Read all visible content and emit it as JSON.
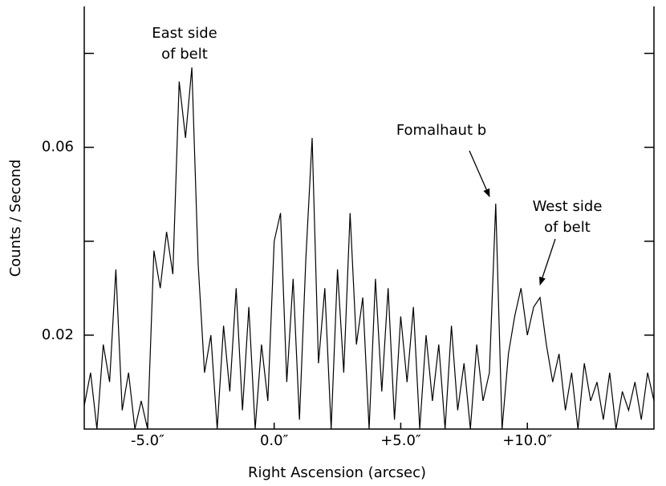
{
  "chart_data": {
    "type": "line",
    "xlabel": "Right Ascension (arcsec)",
    "ylabel": "Counts / Second",
    "x": [
      -7.5,
      -7.25,
      -7.0,
      -6.75,
      -6.5,
      -6.25,
      -6.0,
      -5.75,
      -5.5,
      -5.25,
      -5.0,
      -4.75,
      -4.5,
      -4.25,
      -4.0,
      -3.75,
      -3.5,
      -3.25,
      -3.0,
      -2.75,
      -2.5,
      -2.25,
      -2.0,
      -1.75,
      -1.5,
      -1.25,
      -1.0,
      -0.75,
      -0.5,
      -0.25,
      0.0,
      0.25,
      0.5,
      0.75,
      1.0,
      1.25,
      1.5,
      1.75,
      2.0,
      2.25,
      2.5,
      2.75,
      3.0,
      3.25,
      3.5,
      3.75,
      4.0,
      4.25,
      4.5,
      4.75,
      5.0,
      5.25,
      5.5,
      5.75,
      6.0,
      6.25,
      6.5,
      6.75,
      7.0,
      7.25,
      7.5,
      7.75,
      8.0,
      8.25,
      8.5,
      8.75,
      9.0,
      9.25,
      9.5,
      9.75,
      10.0,
      10.25,
      10.5,
      10.75,
      11.0,
      11.25,
      11.5,
      11.75,
      12.0,
      12.25,
      12.5,
      12.75,
      13.0,
      13.25,
      13.5,
      13.75,
      14.0,
      14.25,
      14.5,
      14.75,
      15.0
    ],
    "values": [
      0.005,
      0.012,
      0.0,
      0.018,
      0.01,
      0.034,
      0.004,
      0.012,
      0.0,
      0.006,
      0.0,
      0.038,
      0.03,
      0.042,
      0.033,
      0.074,
      0.062,
      0.077,
      0.035,
      0.012,
      0.02,
      0.0,
      0.022,
      0.008,
      0.03,
      0.004,
      0.026,
      0.0,
      0.018,
      0.006,
      0.04,
      0.046,
      0.01,
      0.032,
      0.002,
      0.036,
      0.062,
      0.014,
      0.03,
      0.0,
      0.034,
      0.012,
      0.046,
      0.018,
      0.028,
      0.0,
      0.032,
      0.008,
      0.03,
      0.002,
      0.024,
      0.01,
      0.026,
      0.0,
      0.02,
      0.006,
      0.018,
      0.0,
      0.022,
      0.004,
      0.014,
      0.0,
      0.018,
      0.006,
      0.012,
      0.048,
      0.0,
      0.016,
      0.024,
      0.03,
      0.02,
      0.026,
      0.028,
      0.018,
      0.01,
      0.016,
      0.004,
      0.012,
      0.0,
      0.014,
      0.006,
      0.01,
      0.002,
      0.012,
      0.0,
      0.008,
      0.004,
      0.01,
      0.002,
      0.012,
      0.006
    ],
    "color": "#000000",
    "xlim": [
      -7.5,
      15
    ],
    "xticks": [
      {
        "value": -5,
        "label": "-5.0″"
      },
      {
        "value": 0,
        "label": "0.0″"
      },
      {
        "value": 5,
        "label": "+5.0″"
      },
      {
        "value": 10,
        "label": "+10.0″"
      }
    ],
    "ylim": [
      0,
      0.09
    ],
    "yticks": [
      0.02,
      0.06
    ],
    "yminor_ticks": [
      0.04,
      0.08
    ],
    "annotations": [
      {
        "lines": [
          "East side",
          "of belt"
        ]
      },
      {
        "lines": [
          "Fomalhaut b"
        ]
      },
      {
        "lines": [
          "West side",
          "of belt"
        ]
      }
    ]
  }
}
